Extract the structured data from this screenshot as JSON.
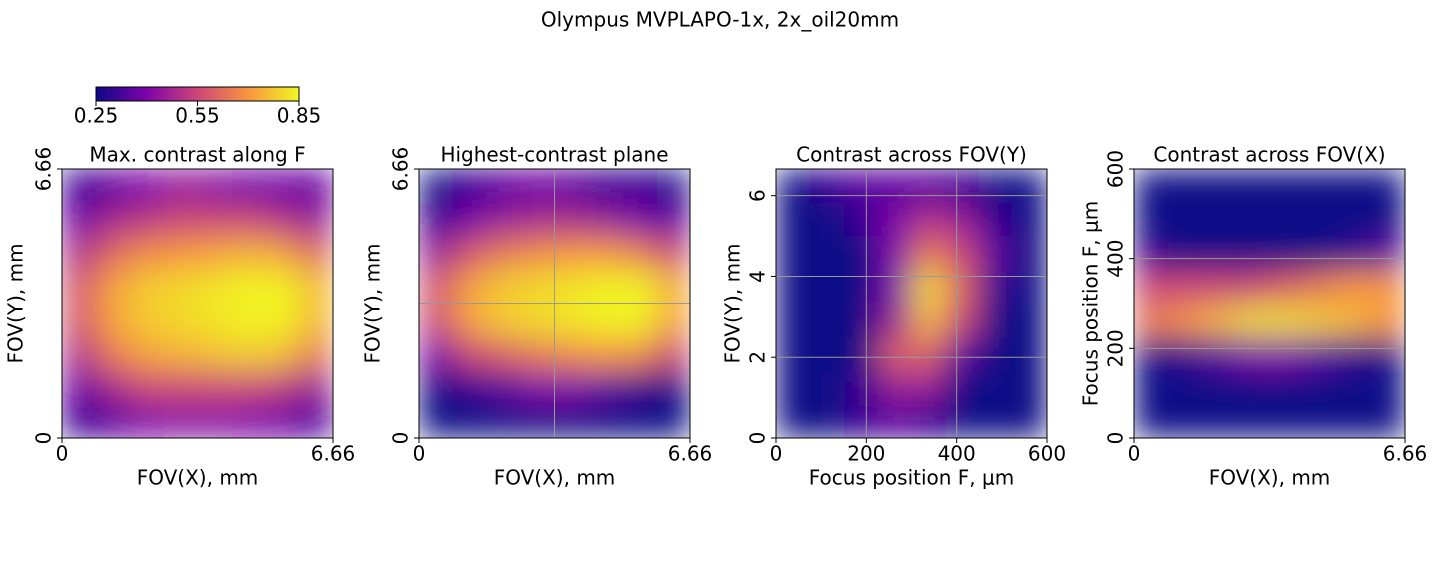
{
  "title": "Olympus MVPLAPO-1x, 2x_oil20mm",
  "colorbar": {
    "colormap": "plasma",
    "clim": [
      0.25,
      0.85
    ],
    "ticks": [
      0.25,
      0.55,
      0.85
    ]
  },
  "chart_data": [
    {
      "type": "heatmap",
      "title": "Max. contrast along F",
      "xlabel": "FOV(X), mm",
      "ylabel": "FOV(Y), mm",
      "xlim": [
        0,
        6.66
      ],
      "ylim": [
        0,
        6.66
      ],
      "xticks": [
        0,
        6.66
      ],
      "yticks": [
        0,
        6.66
      ],
      "grid": false,
      "z": [
        [
          0.3,
          0.35,
          0.4,
          0.42,
          0.42,
          0.4,
          0.38,
          0.33
        ],
        [
          0.38,
          0.48,
          0.55,
          0.55,
          0.55,
          0.55,
          0.52,
          0.45
        ],
        [
          0.5,
          0.65,
          0.72,
          0.74,
          0.76,
          0.78,
          0.76,
          0.65
        ],
        [
          0.58,
          0.72,
          0.78,
          0.8,
          0.82,
          0.84,
          0.84,
          0.75
        ],
        [
          0.58,
          0.72,
          0.78,
          0.8,
          0.82,
          0.84,
          0.84,
          0.76
        ],
        [
          0.5,
          0.62,
          0.68,
          0.7,
          0.72,
          0.74,
          0.72,
          0.62
        ],
        [
          0.38,
          0.48,
          0.52,
          0.55,
          0.55,
          0.55,
          0.5,
          0.45
        ],
        [
          0.3,
          0.36,
          0.4,
          0.45,
          0.42,
          0.38,
          0.38,
          0.36
        ]
      ]
    },
    {
      "type": "heatmap",
      "title": "Highest-contrast plane",
      "xlabel": "FOV(X), mm",
      "ylabel": "FOV(Y), mm",
      "xlim": [
        0,
        6.66
      ],
      "ylim": [
        0,
        6.66
      ],
      "xticks": [
        0,
        6.66
      ],
      "yticks": [
        0,
        6.66
      ],
      "grid": false,
      "crosshair": [
        3.33,
        3.33
      ],
      "z": [
        [
          0.2,
          0.22,
          0.25,
          0.25,
          0.25,
          0.25,
          0.22,
          0.2
        ],
        [
          0.25,
          0.3,
          0.35,
          0.4,
          0.4,
          0.35,
          0.3,
          0.25
        ],
        [
          0.4,
          0.55,
          0.6,
          0.65,
          0.68,
          0.7,
          0.68,
          0.55
        ],
        [
          0.55,
          0.72,
          0.78,
          0.8,
          0.82,
          0.84,
          0.84,
          0.72
        ],
        [
          0.58,
          0.72,
          0.78,
          0.8,
          0.82,
          0.84,
          0.84,
          0.74
        ],
        [
          0.45,
          0.58,
          0.65,
          0.68,
          0.7,
          0.7,
          0.66,
          0.55
        ],
        [
          0.3,
          0.4,
          0.45,
          0.48,
          0.48,
          0.45,
          0.4,
          0.35
        ],
        [
          0.25,
          0.3,
          0.35,
          0.38,
          0.35,
          0.3,
          0.3,
          0.28
        ]
      ]
    },
    {
      "type": "heatmap",
      "title": "Contrast across FOV(Y)",
      "xlabel": "Focus position F, μm",
      "ylabel": "FOV(Y), mm",
      "xlim": [
        0,
        600
      ],
      "ylim": [
        0,
        6.66
      ],
      "xticks": [
        0,
        200,
        400,
        600
      ],
      "yticks": [
        0,
        2,
        4,
        6
      ],
      "grid": true,
      "z": [
        [
          0.2,
          0.25,
          0.3,
          0.35,
          0.3,
          0.2,
          0.2,
          0.2
        ],
        [
          0.2,
          0.2,
          0.3,
          0.45,
          0.45,
          0.25,
          0.2,
          0.2
        ],
        [
          0.2,
          0.2,
          0.25,
          0.6,
          0.6,
          0.35,
          0.2,
          0.2
        ],
        [
          0.2,
          0.2,
          0.2,
          0.45,
          0.75,
          0.55,
          0.25,
          0.2
        ],
        [
          0.2,
          0.2,
          0.2,
          0.4,
          0.8,
          0.6,
          0.3,
          0.2
        ],
        [
          0.2,
          0.2,
          0.25,
          0.4,
          0.65,
          0.55,
          0.35,
          0.2
        ],
        [
          0.2,
          0.2,
          0.3,
          0.4,
          0.5,
          0.45,
          0.3,
          0.2
        ],
        [
          0.25,
          0.3,
          0.35,
          0.35,
          0.35,
          0.3,
          0.25,
          0.2
        ]
      ]
    },
    {
      "type": "heatmap",
      "title": "Contrast across FOV(X)",
      "xlabel": "FOV(X), mm",
      "ylabel": "Focus position F, μm",
      "xlim": [
        0,
        6.66
      ],
      "ylim": [
        0,
        600
      ],
      "xticks": [
        0,
        6.66
      ],
      "yticks": [
        0,
        200,
        400,
        600
      ],
      "grid": true,
      "z": [
        [
          0.2,
          0.2,
          0.2,
          0.2,
          0.2,
          0.2,
          0.2,
          0.2
        ],
        [
          0.2,
          0.2,
          0.2,
          0.2,
          0.2,
          0.2,
          0.2,
          0.2
        ],
        [
          0.25,
          0.3,
          0.35,
          0.4,
          0.4,
          0.35,
          0.3,
          0.25
        ],
        [
          0.65,
          0.7,
          0.75,
          0.8,
          0.8,
          0.78,
          0.75,
          0.7
        ],
        [
          0.55,
          0.55,
          0.55,
          0.55,
          0.6,
          0.65,
          0.7,
          0.7
        ],
        [
          0.3,
          0.25,
          0.2,
          0.2,
          0.2,
          0.25,
          0.3,
          0.35
        ],
        [
          0.2,
          0.2,
          0.2,
          0.2,
          0.2,
          0.2,
          0.2,
          0.2
        ],
        [
          0.2,
          0.2,
          0.2,
          0.2,
          0.2,
          0.2,
          0.2,
          0.2
        ]
      ]
    }
  ]
}
